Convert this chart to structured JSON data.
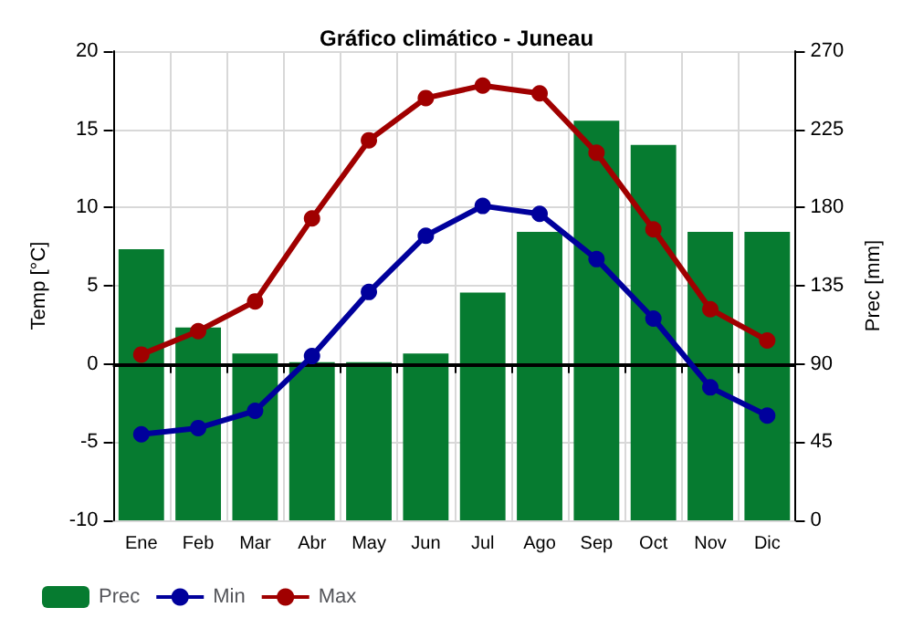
{
  "chart_data": {
    "type": "bar",
    "title": "Gráfico climático - Juneau",
    "ylabel": "Temp [°C]",
    "y2label": "Prec [mm]",
    "categories": [
      "Ene",
      "Feb",
      "Mar",
      "Abr",
      "May",
      "Jun",
      "Jul",
      "Ago",
      "Sep",
      "Oct",
      "Nov",
      "Dic"
    ],
    "series": [
      {
        "name": "Prec",
        "axis": "y2",
        "color": "#067b30",
        "values": [
          156,
          111,
          96,
          91,
          91,
          96,
          131,
          166,
          230,
          216,
          166,
          166
        ]
      },
      {
        "name": "Min",
        "type": "line",
        "color": "#00009c",
        "values": [
          -4.5,
          -4.1,
          -3.0,
          0.5,
          4.6,
          8.2,
          10.1,
          9.6,
          6.7,
          2.9,
          -1.5,
          -3.3
        ]
      },
      {
        "name": "Max",
        "type": "line",
        "color": "#a00000",
        "values": [
          0.6,
          2.1,
          4.0,
          9.3,
          14.3,
          17.0,
          17.8,
          17.3,
          13.5,
          8.6,
          3.5,
          1.5
        ]
      }
    ],
    "ylim": [
      -10,
      20
    ],
    "yticks": [
      -10,
      -5,
      0,
      5,
      10,
      15,
      20
    ],
    "y2lim": [
      0,
      270
    ],
    "y2ticks": [
      0,
      45,
      90,
      135,
      180,
      225,
      270
    ],
    "ref_lines": [
      {
        "axis": "y",
        "value": 0,
        "color": "#000000"
      }
    ],
    "grid": true,
    "legend": "bottom left",
    "marker": "circle",
    "line_style": "solid"
  }
}
